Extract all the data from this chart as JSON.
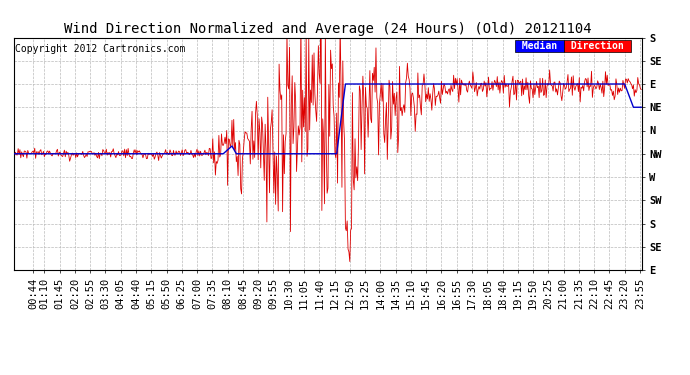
{
  "title": "Wind Direction Normalized and Average (24 Hours) (Old) 20121104",
  "copyright": "Copyright 2012 Cartronics.com",
  "legend_median": "Median",
  "legend_direction": "Direction",
  "ytick_labels_right": [
    "S",
    "SE",
    "E",
    "NE",
    "N",
    "NW",
    "W",
    "SW",
    "S",
    "SE",
    "E"
  ],
  "ytick_values": [
    0,
    45,
    90,
    135,
    180,
    225,
    270,
    315,
    360,
    405,
    450
  ],
  "xtick_labels": [
    "00:44",
    "01:10",
    "01:45",
    "02:20",
    "02:55",
    "03:30",
    "04:05",
    "04:40",
    "05:15",
    "05:50",
    "06:25",
    "07:00",
    "07:35",
    "08:10",
    "08:45",
    "09:20",
    "09:55",
    "10:30",
    "11:05",
    "11:40",
    "12:15",
    "12:50",
    "13:25",
    "14:00",
    "14:35",
    "15:10",
    "15:45",
    "16:20",
    "16:55",
    "17:30",
    "18:05",
    "18:40",
    "19:15",
    "19:50",
    "20:25",
    "21:00",
    "21:35",
    "22:10",
    "22:45",
    "23:20",
    "23:55"
  ],
  "background_color": "#ffffff",
  "plot_bg_color": "#ffffff",
  "grid_color": "#bbbbbb",
  "red_line_color": "#dd0000",
  "blue_line_color": "#0000cc",
  "black_line_color": "#000000",
  "title_fontsize": 10,
  "copyright_fontsize": 7,
  "tick_fontsize": 7.5,
  "legend_fontsize": 7
}
